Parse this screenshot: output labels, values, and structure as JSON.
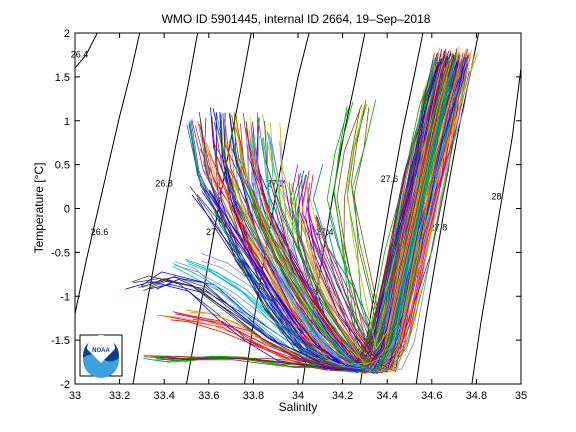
{
  "chart_data": {
    "type": "line",
    "title": "WMO ID 5901445, internal ID 2664, 19–Sep–2018",
    "xlabel": "Salinity",
    "ylabel": "Temperature [°C]",
    "xlim": [
      33,
      35
    ],
    "ylim": [
      -2,
      2
    ],
    "xticks": [
      "33",
      "33.2",
      "33.4",
      "33.6",
      "33.8",
      "34",
      "34.2",
      "34.4",
      "34.6",
      "34.8",
      "35"
    ],
    "yticks": [
      "-2",
      "-1.5",
      "-1",
      "-0.5",
      "0",
      "0.5",
      "1",
      "1.5",
      "2"
    ],
    "grid": false,
    "legend": "none",
    "logo": "NOAA",
    "density_contours": [
      {
        "label": "26.4",
        "points": [
          [
            33.0,
            1.6
          ],
          [
            33.05,
            1.75
          ],
          [
            33.1,
            2.0
          ]
        ],
        "label_at": [
          33.02,
          1.72
        ]
      },
      {
        "label": "26.6",
        "points": [
          [
            33.0,
            -1.2
          ],
          [
            33.05,
            -0.6
          ],
          [
            33.1,
            -0.05
          ],
          [
            33.15,
            0.5
          ],
          [
            33.2,
            1.05
          ],
          [
            33.25,
            1.55
          ],
          [
            33.29,
            2.0
          ]
        ],
        "label_at": [
          33.11,
          -0.3
        ]
      },
      {
        "label": "26.8",
        "points": [
          [
            33.26,
            -2.0
          ],
          [
            33.3,
            -1.4
          ],
          [
            33.35,
            -0.7
          ],
          [
            33.4,
            0.0
          ],
          [
            33.45,
            0.7
          ],
          [
            33.5,
            1.3
          ],
          [
            33.55,
            2.0
          ]
        ],
        "label_at": [
          33.4,
          0.25
        ]
      },
      {
        "label": "27",
        "points": [
          [
            33.5,
            -2.0
          ],
          [
            33.55,
            -1.3
          ],
          [
            33.6,
            -0.6
          ],
          [
            33.65,
            0.1
          ],
          [
            33.7,
            0.8
          ],
          [
            33.75,
            1.45
          ],
          [
            33.79,
            2.0
          ]
        ],
        "label_at": [
          33.61,
          -0.3
        ]
      },
      {
        "label": "27.2",
        "points": [
          [
            33.76,
            -2.0
          ],
          [
            33.8,
            -1.3
          ],
          [
            33.85,
            -0.55
          ],
          [
            33.9,
            0.15
          ],
          [
            33.95,
            0.85
          ],
          [
            34.0,
            1.5
          ],
          [
            34.05,
            2.0
          ]
        ],
        "label_at": [
          33.9,
          0.25
        ]
      },
      {
        "label": "27.4",
        "points": [
          [
            34.02,
            -2.0
          ],
          [
            34.06,
            -1.3
          ],
          [
            34.11,
            -0.55
          ],
          [
            34.16,
            0.2
          ],
          [
            34.21,
            0.9
          ],
          [
            34.26,
            1.5
          ],
          [
            34.3,
            2.0
          ]
        ],
        "label_at": [
          34.12,
          -0.3
        ]
      },
      {
        "label": "27.6",
        "points": [
          [
            34.28,
            -2.0
          ],
          [
            34.32,
            -1.3
          ],
          [
            34.37,
            -0.55
          ],
          [
            34.42,
            0.2
          ],
          [
            34.47,
            0.9
          ],
          [
            34.52,
            1.5
          ],
          [
            34.56,
            2.0
          ]
        ],
        "label_at": [
          34.41,
          0.3
        ]
      },
      {
        "label": "27.8",
        "points": [
          [
            34.53,
            -2.0
          ],
          [
            34.57,
            -1.3
          ],
          [
            34.62,
            -0.55
          ],
          [
            34.67,
            0.2
          ],
          [
            34.72,
            0.9
          ],
          [
            34.77,
            1.5
          ],
          [
            34.81,
            2.0
          ]
        ],
        "label_at": [
          34.63,
          -0.25
        ]
      },
      {
        "label": "28",
        "points": [
          [
            34.78,
            -2.0
          ],
          [
            34.82,
            -1.3
          ],
          [
            34.87,
            -0.55
          ],
          [
            34.92,
            0.2
          ],
          [
            34.96,
            0.8
          ],
          [
            35.0,
            1.6
          ]
        ],
        "label_at": [
          34.89,
          0.1
        ]
      }
    ],
    "profile_style": {
      "count": 170,
      "colors": [
        "#0000ff",
        "#00aa00",
        "#ff0000",
        "#00bfbf",
        "#bf00bf",
        "#bfbf00",
        "#3f3f3f",
        "#8b4513",
        "#ff7f00",
        "#7f7fff",
        "#008080",
        "#800080"
      ]
    },
    "series": [
      {
        "points": [
          [
            33.65,
            1.1
          ],
          [
            33.66,
            0.6
          ],
          [
            33.7,
            0.1
          ],
          [
            33.78,
            -0.5
          ],
          [
            33.9,
            -1.1
          ],
          [
            34.05,
            -1.6
          ],
          [
            34.2,
            -1.78
          ],
          [
            34.3,
            -1.82
          ],
          [
            34.38,
            -1.7
          ],
          [
            34.45,
            -0.9
          ],
          [
            34.52,
            -0.1
          ],
          [
            34.6,
            0.7
          ],
          [
            34.66,
            1.3
          ],
          [
            34.7,
            1.75
          ]
        ]
      },
      {
        "points": [
          [
            33.72,
            1.05
          ],
          [
            33.75,
            0.5
          ],
          [
            33.82,
            0.0
          ],
          [
            33.92,
            -0.6
          ],
          [
            34.05,
            -1.2
          ],
          [
            34.18,
            -1.65
          ],
          [
            34.32,
            -1.85
          ],
          [
            34.4,
            -1.6
          ],
          [
            34.48,
            -0.7
          ],
          [
            34.56,
            0.2
          ],
          [
            34.63,
            1.0
          ],
          [
            34.69,
            1.6
          ]
        ]
      },
      {
        "points": [
          [
            33.62,
            0.7
          ],
          [
            33.68,
            0.3
          ],
          [
            33.8,
            -0.3
          ],
          [
            33.95,
            -0.9
          ],
          [
            34.1,
            -1.5
          ],
          [
            34.25,
            -1.8
          ],
          [
            34.36,
            -1.78
          ],
          [
            34.44,
            -1.2
          ],
          [
            34.52,
            -0.2
          ],
          [
            34.6,
            0.6
          ],
          [
            34.67,
            1.4
          ],
          [
            34.71,
            1.78
          ]
        ]
      },
      {
        "points": [
          [
            33.84,
            0.8
          ],
          [
            33.86,
            0.3
          ],
          [
            33.9,
            -0.2
          ],
          [
            34.0,
            -0.8
          ],
          [
            34.12,
            -1.4
          ],
          [
            34.26,
            -1.8
          ],
          [
            34.37,
            -1.83
          ],
          [
            34.43,
            -1.5
          ],
          [
            34.5,
            -0.6
          ],
          [
            34.58,
            0.3
          ],
          [
            34.65,
            1.1
          ],
          [
            34.7,
            1.65
          ]
        ]
      },
      {
        "points": [
          [
            33.55,
            1.0
          ],
          [
            33.6,
            0.4
          ],
          [
            33.72,
            -0.2
          ],
          [
            33.85,
            -0.8
          ],
          [
            34.0,
            -1.4
          ],
          [
            34.15,
            -1.75
          ],
          [
            34.3,
            -1.84
          ],
          [
            34.38,
            -1.65
          ],
          [
            34.46,
            -0.8
          ],
          [
            34.55,
            0.1
          ],
          [
            34.62,
            0.9
          ],
          [
            34.68,
            1.55
          ]
        ]
      },
      {
        "points": [
          [
            33.96,
            0.3
          ],
          [
            33.98,
            -0.1
          ],
          [
            34.04,
            -0.6
          ],
          [
            34.14,
            -1.2
          ],
          [
            34.28,
            -1.7
          ],
          [
            34.36,
            -1.84
          ],
          [
            34.42,
            -1.4
          ],
          [
            34.49,
            -0.5
          ],
          [
            34.57,
            0.4
          ],
          [
            34.64,
            1.2
          ],
          [
            34.69,
            1.7
          ]
        ]
      },
      {
        "points": [
          [
            33.3,
            -0.9
          ],
          [
            33.4,
            -0.8
          ],
          [
            33.55,
            -0.9
          ],
          [
            33.7,
            -1.2
          ],
          [
            33.85,
            -1.5
          ],
          [
            34.0,
            -1.7
          ],
          [
            34.15,
            -1.82
          ],
          [
            34.3,
            -1.84
          ],
          [
            34.38,
            -1.6
          ],
          [
            34.46,
            -0.7
          ],
          [
            34.55,
            0.3
          ],
          [
            34.63,
            1.1
          ],
          [
            34.69,
            1.65
          ]
        ]
      },
      {
        "points": [
          [
            33.38,
            -1.7
          ],
          [
            33.5,
            -1.72
          ],
          [
            33.65,
            -1.7
          ],
          [
            33.8,
            -1.72
          ],
          [
            34.0,
            -1.78
          ],
          [
            34.2,
            -1.82
          ],
          [
            34.32,
            -1.84
          ],
          [
            34.4,
            -1.5
          ],
          [
            34.48,
            -0.6
          ],
          [
            34.56,
            0.3
          ],
          [
            34.64,
            1.2
          ],
          [
            34.7,
            1.75
          ]
        ]
      },
      {
        "points": [
          [
            33.45,
            -1.2
          ],
          [
            33.55,
            -1.25
          ],
          [
            33.7,
            -1.35
          ],
          [
            33.85,
            -1.55
          ],
          [
            34.0,
            -1.7
          ],
          [
            34.15,
            -1.8
          ],
          [
            34.32,
            -1.83
          ],
          [
            34.4,
            -1.55
          ],
          [
            34.47,
            -0.7
          ],
          [
            34.55,
            0.2
          ],
          [
            34.63,
            1.05
          ],
          [
            34.69,
            1.62
          ]
        ]
      },
      {
        "points": [
          [
            33.77,
            0.8
          ],
          [
            33.78,
            0.3
          ],
          [
            33.83,
            -0.25
          ],
          [
            33.93,
            -0.85
          ],
          [
            34.06,
            -1.4
          ],
          [
            34.2,
            -1.75
          ],
          [
            34.33,
            -1.84
          ],
          [
            34.41,
            -1.45
          ],
          [
            34.49,
            -0.55
          ],
          [
            34.58,
            0.35
          ],
          [
            34.65,
            1.15
          ],
          [
            34.7,
            1.7
          ]
        ]
      },
      {
        "points": [
          [
            34.08,
            -0.1
          ],
          [
            34.12,
            -0.4
          ],
          [
            34.2,
            -0.9
          ],
          [
            34.28,
            -1.4
          ],
          [
            34.35,
            -1.75
          ],
          [
            34.4,
            -1.5
          ],
          [
            34.47,
            -0.6
          ],
          [
            34.55,
            0.3
          ],
          [
            34.62,
            1.1
          ],
          [
            34.68,
            1.68
          ]
        ]
      },
      {
        "points": [
          [
            33.85,
            1.0
          ],
          [
            33.86,
            0.5
          ],
          [
            33.92,
            0.0
          ],
          [
            34.02,
            -0.6
          ],
          [
            34.15,
            -1.2
          ],
          [
            34.28,
            -1.65
          ],
          [
            34.37,
            -1.84
          ],
          [
            34.44,
            -1.3
          ],
          [
            34.51,
            -0.4
          ],
          [
            34.59,
            0.5
          ],
          [
            34.66,
            1.3
          ],
          [
            34.71,
            1.8
          ]
        ]
      },
      {
        "points": [
          [
            33.6,
            0.2
          ],
          [
            33.68,
            -0.1
          ],
          [
            33.8,
            -0.6
          ],
          [
            33.94,
            -1.1
          ],
          [
            34.08,
            -1.55
          ],
          [
            34.22,
            -1.8
          ],
          [
            34.34,
            -1.84
          ],
          [
            34.42,
            -1.4
          ],
          [
            34.5,
            -0.5
          ],
          [
            34.58,
            0.4
          ],
          [
            34.65,
            1.2
          ],
          [
            34.7,
            1.72
          ]
        ]
      },
      {
        "points": [
          [
            34.3,
            1.2
          ],
          [
            34.25,
            0.7
          ],
          [
            34.22,
            0.2
          ],
          [
            34.25,
            -0.4
          ],
          [
            34.3,
            -1.0
          ],
          [
            34.35,
            -1.6
          ],
          [
            34.4,
            -1.4
          ],
          [
            34.48,
            -0.5
          ],
          [
            34.56,
            0.4
          ],
          [
            34.63,
            1.2
          ],
          [
            34.69,
            1.7
          ]
        ]
      },
      {
        "points": [
          [
            33.7,
            0.9
          ],
          [
            33.74,
            0.4
          ],
          [
            33.82,
            -0.15
          ],
          [
            33.94,
            -0.75
          ],
          [
            34.08,
            -1.3
          ],
          [
            34.22,
            -1.72
          ],
          [
            34.35,
            -1.85
          ],
          [
            34.43,
            -1.35
          ],
          [
            34.51,
            -0.45
          ],
          [
            34.59,
            0.45
          ],
          [
            34.66,
            1.25
          ],
          [
            34.71,
            1.76
          ]
        ]
      },
      {
        "points": [
          [
            33.5,
            -0.6
          ],
          [
            33.6,
            -0.7
          ],
          [
            33.75,
            -0.95
          ],
          [
            33.9,
            -1.3
          ],
          [
            34.05,
            -1.6
          ],
          [
            34.2,
            -1.8
          ],
          [
            34.33,
            -1.84
          ],
          [
            34.41,
            -1.5
          ],
          [
            34.49,
            -0.6
          ],
          [
            34.57,
            0.3
          ],
          [
            34.64,
            1.15
          ],
          [
            34.7,
            1.7
          ]
        ]
      },
      {
        "points": [
          [
            34.05,
            0.4
          ],
          [
            34.02,
            0.0
          ],
          [
            34.04,
            -0.4
          ],
          [
            34.1,
            -0.9
          ],
          [
            34.2,
            -1.4
          ],
          [
            34.3,
            -1.78
          ],
          [
            34.38,
            -1.7
          ],
          [
            34.45,
            -0.9
          ],
          [
            34.53,
            0.0
          ],
          [
            34.61,
            0.85
          ],
          [
            34.67,
            1.5
          ]
        ]
      },
      {
        "points": [
          [
            33.78,
            0.25
          ],
          [
            33.82,
            -0.1
          ],
          [
            33.9,
            -0.55
          ],
          [
            34.0,
            -1.0
          ],
          [
            34.12,
            -1.45
          ],
          [
            34.25,
            -1.78
          ],
          [
            34.36,
            -1.84
          ],
          [
            34.43,
            -1.3
          ],
          [
            34.51,
            -0.4
          ],
          [
            34.59,
            0.5
          ],
          [
            34.66,
            1.3
          ],
          [
            34.71,
            1.78
          ]
        ]
      }
    ]
  }
}
